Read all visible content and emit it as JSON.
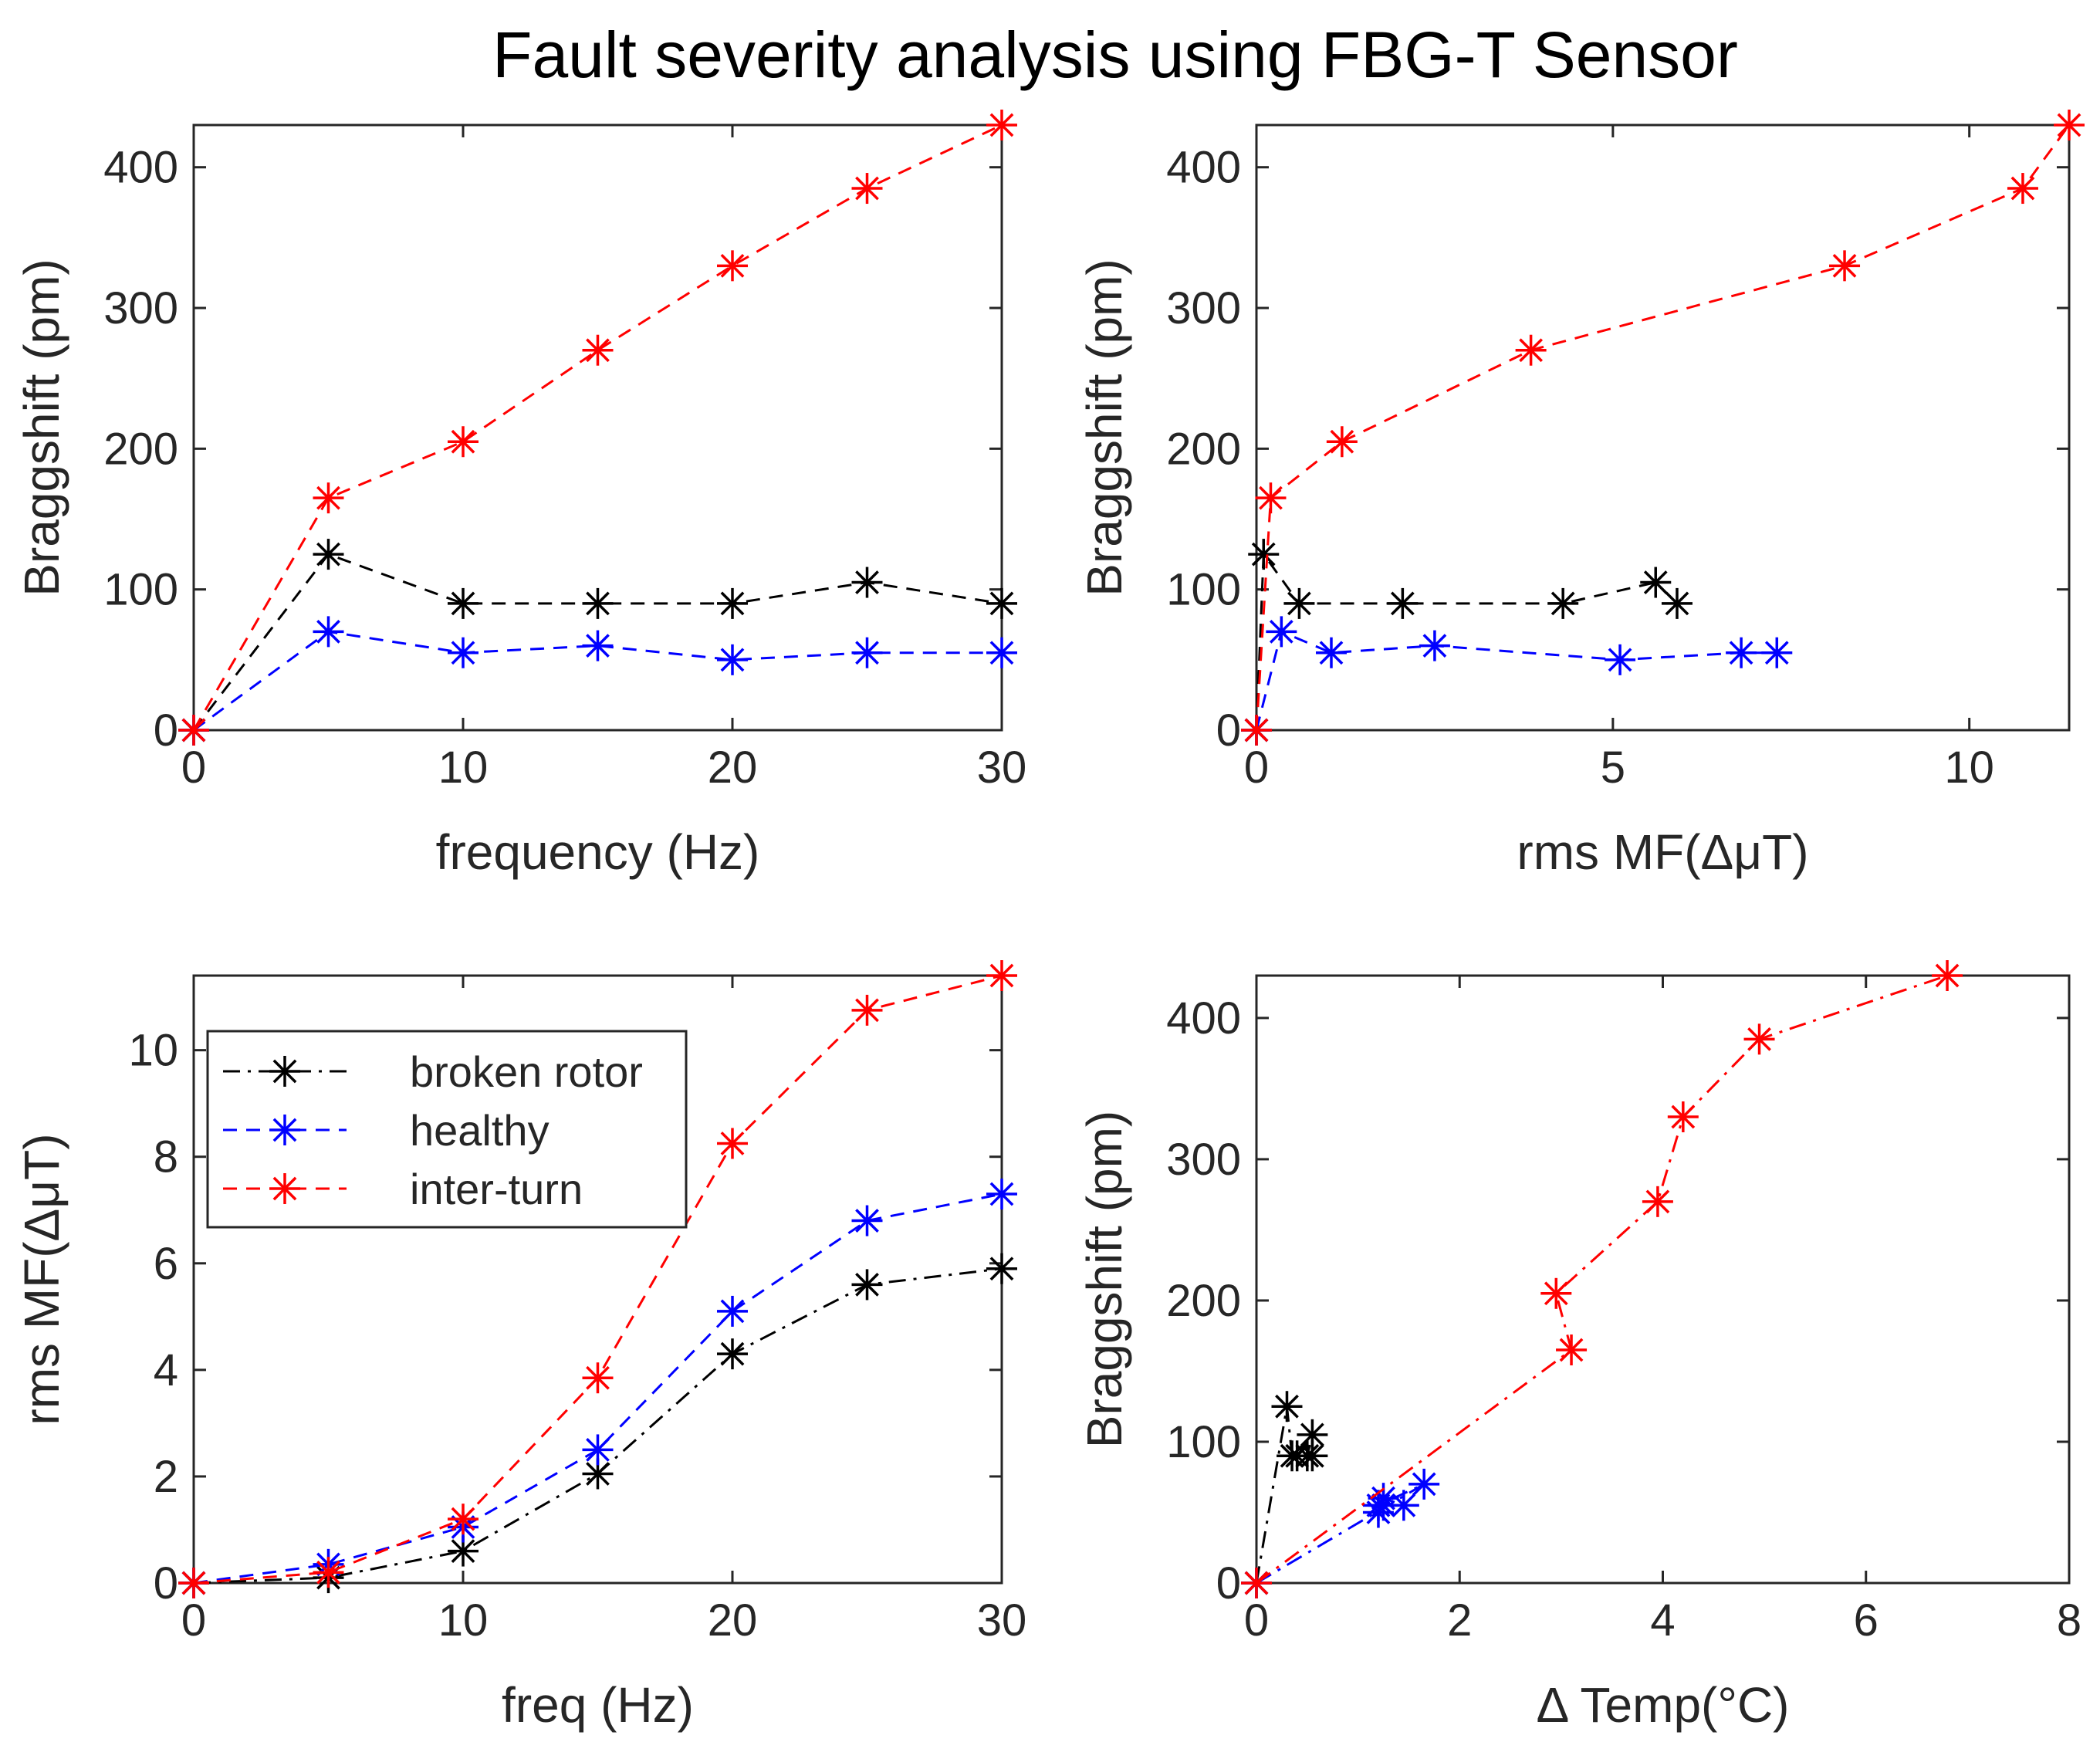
{
  "figure_title": "Fault severity analysis using FBG-T Sensor",
  "colors": {
    "broken rotor": "#000000",
    "healthy": "#0000ff",
    "inter-turn": "#ff0000"
  },
  "chart_data": [
    {
      "type": "line",
      "id": "tl",
      "xlabel": "frequency (Hz)",
      "ylabel": "Braggshift (pm)",
      "xlim": [
        0,
        30
      ],
      "ylim": [
        0,
        430
      ],
      "xticks": [
        0,
        10,
        20,
        30
      ],
      "yticks": [
        0,
        100,
        200,
        300,
        400
      ],
      "xtick_labels": [
        "0",
        "10",
        "20",
        "30"
      ],
      "ytick_labels": [
        "0",
        "100",
        "200",
        "300",
        "400"
      ],
      "series": [
        {
          "name": "broken rotor",
          "color": "#000000",
          "dash": "dashed",
          "x": [
            0,
            5,
            10,
            15,
            20,
            25,
            30
          ],
          "y": [
            0,
            125,
            90,
            90,
            90,
            105,
            90
          ]
        },
        {
          "name": "healthy",
          "color": "#0000ff",
          "dash": "dashed",
          "x": [
            0,
            5,
            10,
            15,
            20,
            25,
            30
          ],
          "y": [
            0,
            70,
            55,
            60,
            50,
            55,
            55
          ]
        },
        {
          "name": "inter-turn",
          "color": "#ff0000",
          "dash": "dashed",
          "x": [
            0,
            5,
            10,
            15,
            20,
            25,
            30
          ],
          "y": [
            0,
            165,
            205,
            270,
            330,
            385,
            430
          ]
        }
      ]
    },
    {
      "type": "line",
      "id": "tr",
      "xlabel": "rms MF(ΔμT)",
      "ylabel": "Braggshift (pm)",
      "xlim": [
        0,
        11.4
      ],
      "ylim": [
        0,
        430
      ],
      "xticks": [
        0,
        5,
        10
      ],
      "yticks": [
        0,
        100,
        200,
        300,
        400
      ],
      "xtick_labels": [
        "0",
        "5",
        "10"
      ],
      "ytick_labels": [
        "0",
        "100",
        "200",
        "300",
        "400"
      ],
      "series": [
        {
          "name": "broken rotor",
          "color": "#000000",
          "dash": "dashed",
          "x": [
            0,
            0.1,
            0.6,
            2.05,
            4.3,
            5.6,
            5.9
          ],
          "y": [
            0,
            125,
            90,
            90,
            90,
            105,
            90
          ]
        },
        {
          "name": "healthy",
          "color": "#0000ff",
          "dash": "dashed",
          "x": [
            0,
            0.35,
            1.05,
            2.5,
            5.1,
            6.8,
            7.3
          ],
          "y": [
            0,
            70,
            55,
            60,
            50,
            55,
            55
          ]
        },
        {
          "name": "inter-turn",
          "color": "#ff0000",
          "dash": "dashed",
          "x": [
            0,
            0.2,
            1.2,
            3.85,
            8.25,
            10.75,
            11.4
          ],
          "y": [
            0,
            165,
            205,
            270,
            330,
            385,
            430
          ]
        }
      ]
    },
    {
      "type": "line",
      "id": "bl",
      "xlabel": "freq (Hz)",
      "ylabel": "rms MF(ΔμT)",
      "xlim": [
        0,
        30
      ],
      "ylim": [
        0,
        11.4
      ],
      "xticks": [
        0,
        10,
        20,
        30
      ],
      "yticks": [
        0,
        2,
        4,
        6,
        8,
        10
      ],
      "xtick_labels": [
        "0",
        "10",
        "20",
        "30"
      ],
      "ytick_labels": [
        "0",
        "2",
        "4",
        "6",
        "8",
        "10"
      ],
      "legend": {
        "position": "top-left",
        "entries": [
          "broken rotor",
          "healthy",
          "inter-turn"
        ]
      },
      "series": [
        {
          "name": "broken rotor",
          "color": "#000000",
          "dash": "dashdot",
          "x": [
            0,
            5,
            10,
            15,
            20,
            25,
            30
          ],
          "y": [
            0,
            0.1,
            0.6,
            2.05,
            4.3,
            5.6,
            5.9
          ]
        },
        {
          "name": "healthy",
          "color": "#0000ff",
          "dash": "dashed",
          "x": [
            0,
            5,
            10,
            15,
            20,
            25,
            30
          ],
          "y": [
            0,
            0.35,
            1.05,
            2.5,
            5.1,
            6.8,
            7.3
          ]
        },
        {
          "name": "inter-turn",
          "color": "#ff0000",
          "dash": "dashed",
          "x": [
            0,
            5,
            10,
            15,
            20,
            25,
            30
          ],
          "y": [
            0,
            0.2,
            1.2,
            3.85,
            8.25,
            10.75,
            11.4
          ]
        }
      ]
    },
    {
      "type": "line",
      "id": "br",
      "xlabel": "Δ Temp(°C)",
      "ylabel": "Braggshift (pm)",
      "xlim": [
        0,
        8
      ],
      "ylim": [
        0,
        430
      ],
      "xticks": [
        0,
        2,
        4,
        6,
        8
      ],
      "yticks": [
        0,
        100,
        200,
        300,
        400
      ],
      "xtick_labels": [
        "0",
        "2",
        "4",
        "6",
        "8"
      ],
      "ytick_labels": [
        "0",
        "100",
        "200",
        "300",
        "400"
      ],
      "series": [
        {
          "name": "broken rotor",
          "color": "#000000",
          "dash": "dashdot",
          "x": [
            0,
            0.3,
            0.35,
            0.55,
            0.5,
            0.55,
            0.4
          ],
          "y": [
            0,
            125,
            90,
            90,
            90,
            105,
            90
          ]
        },
        {
          "name": "healthy",
          "color": "#0000ff",
          "dash": "dashdot",
          "x": [
            0,
            1.65,
            1.2,
            1.25,
            1.45,
            1.25,
            1.2
          ],
          "y": [
            0,
            70,
            55,
            60,
            55,
            55,
            50
          ]
        },
        {
          "name": "inter-turn",
          "color": "#ff0000",
          "dash": "dashdot",
          "x": [
            0,
            3.1,
            2.95,
            3.95,
            4.2,
            4.95,
            6.8
          ],
          "y": [
            0,
            165,
            205,
            270,
            330,
            385,
            430
          ]
        }
      ]
    }
  ]
}
